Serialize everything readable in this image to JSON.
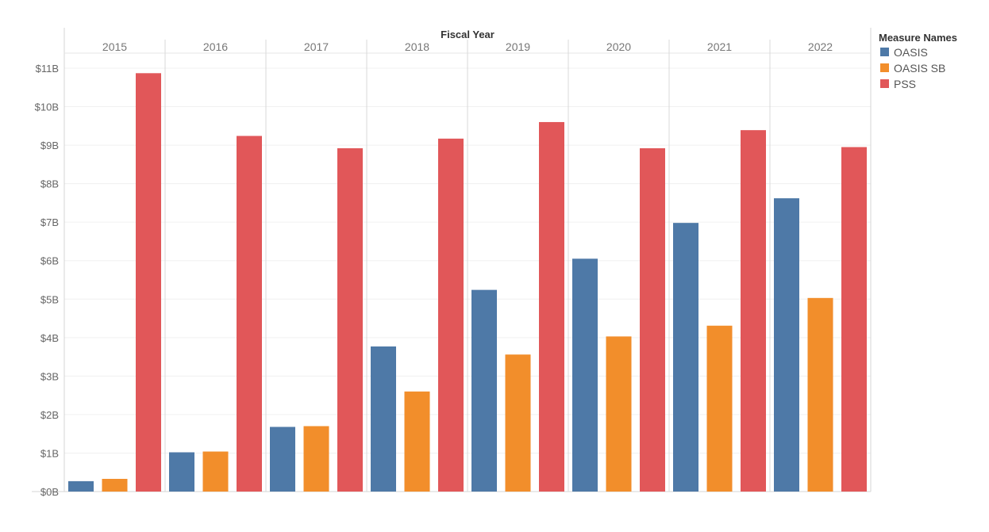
{
  "chart_data": {
    "type": "bar",
    "column_header": "Fiscal Year",
    "categories": [
      "2015",
      "2016",
      "2017",
      "2018",
      "2019",
      "2020",
      "2021",
      "2022"
    ],
    "series": [
      {
        "name": "OASIS",
        "color": "#4e79a7",
        "values": [
          0.27,
          1.02,
          1.68,
          3.77,
          5.24,
          6.05,
          6.98,
          7.62
        ]
      },
      {
        "name": "OASIS SB",
        "color": "#f28e2b",
        "values": [
          0.33,
          1.04,
          1.7,
          2.6,
          3.56,
          4.03,
          4.31,
          5.03
        ]
      },
      {
        "name": "PSS",
        "color": "#e15759",
        "values": [
          10.87,
          9.24,
          8.92,
          9.17,
          9.6,
          8.92,
          9.39,
          8.95
        ]
      }
    ],
    "y_ticks": [
      "$0B",
      "$1B",
      "$2B",
      "$3B",
      "$4B",
      "$5B",
      "$6B",
      "$7B",
      "$8B",
      "$9B",
      "$10B",
      "$11B"
    ],
    "ylim": [
      0,
      11.5
    ],
    "y_unit": "billions of dollars",
    "legend": {
      "title": "Measure Names",
      "position": "top-right"
    },
    "grid": true
  }
}
